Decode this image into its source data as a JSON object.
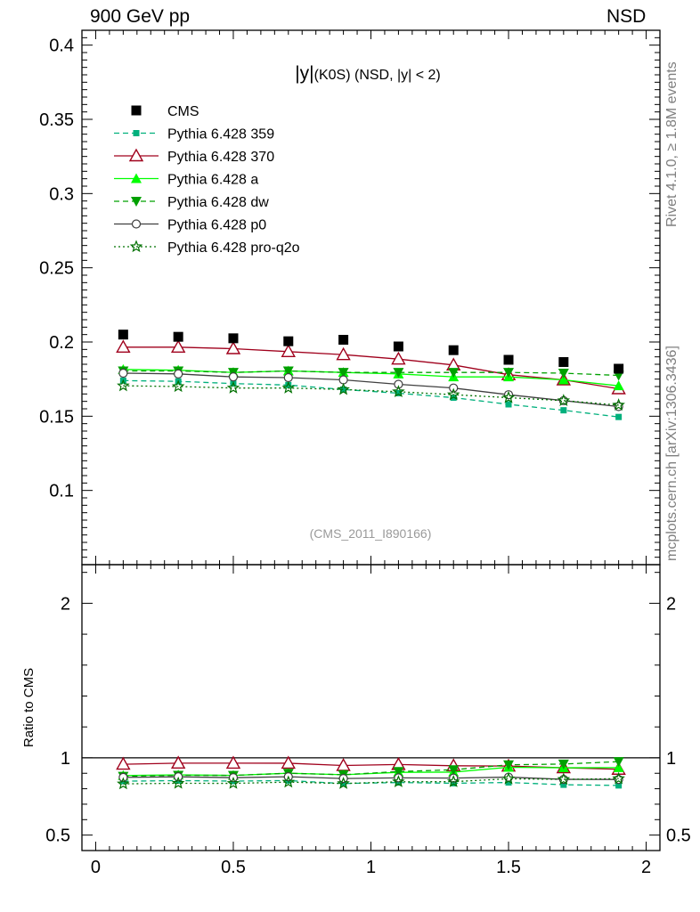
{
  "header": {
    "left": "900 GeV pp",
    "right": "NSD"
  },
  "side_labels": {
    "rivet": "Rivet 4.1.0, ≥ 1.8M events",
    "mcplots": "mcplots.cern.ch [arXiv:1306.3436]"
  },
  "colors": {
    "cms": "#000000",
    "p359": "#00b07c",
    "p370": "#a0001c",
    "pa": "#00ff00",
    "pdw": "#00a000",
    "pp0": "#404040",
    "pq2o": "#007000"
  },
  "chart_data": {
    "type": "line",
    "title_main": "|y|",
    "title_rest": "(K0S) (NSD, |y| < 2)",
    "watermark": "(CMS_2011_I890166)",
    "xlabel": "",
    "ylabel": "",
    "ratio_ylabel": "Ratio to CMS",
    "xlim": [
      -0.05,
      2.05
    ],
    "ylim": [
      0.05,
      0.41
    ],
    "ratio_ylim": [
      0.4,
      2.25
    ],
    "x_ticks": [
      "0",
      "0.5",
      "1",
      "1.5",
      "2"
    ],
    "x_tick_values": [
      0,
      0.5,
      1,
      1.5,
      2
    ],
    "y_ticks": [
      "0.1",
      "0.15",
      "0.2",
      "0.25",
      "0.3",
      "0.35",
      "0.4"
    ],
    "y_tick_values": [
      0.1,
      0.15,
      0.2,
      0.25,
      0.3,
      0.35,
      0.4
    ],
    "ratio_ticks": [
      "0.5",
      "1",
      "2"
    ],
    "ratio_tick_values": [
      0.5,
      1,
      2
    ],
    "x": [
      0.1,
      0.3,
      0.5,
      0.7,
      0.9,
      1.1,
      1.3,
      1.5,
      1.7,
      1.9
    ],
    "data": {
      "name": "CMS",
      "values": [
        0.205,
        0.2035,
        0.2025,
        0.2005,
        0.2015,
        0.197,
        0.1945,
        0.188,
        0.1865,
        0.182
      ]
    },
    "series": [
      {
        "name": "Pythia 6.428 359",
        "color_key": "p359",
        "marker": "square",
        "dash": "6,4",
        "values": [
          0.174,
          0.1735,
          0.172,
          0.171,
          0.168,
          0.1655,
          0.1625,
          0.158,
          0.154,
          0.1495
        ]
      },
      {
        "name": "Pythia 6.428 370",
        "color_key": "p370",
        "marker": "triangle-open",
        "dash": "",
        "values": [
          0.1965,
          0.1965,
          0.1955,
          0.1935,
          0.1915,
          0.1885,
          0.1845,
          0.178,
          0.1745,
          0.1685
        ]
      },
      {
        "name": "Pythia 6.428 a",
        "color_key": "pa",
        "marker": "triangle",
        "dash": "",
        "values": [
          0.1815,
          0.181,
          0.1795,
          0.1805,
          0.1795,
          0.1785,
          0.1765,
          0.1765,
          0.1745,
          0.1705
        ]
      },
      {
        "name": "Pythia 6.428 dw",
        "color_key": "pdw",
        "marker": "triangle-down",
        "dash": "6,4",
        "values": [
          0.1805,
          0.1805,
          0.1795,
          0.1805,
          0.1795,
          0.1795,
          0.1795,
          0.1795,
          0.179,
          0.1775
        ]
      },
      {
        "name": "Pythia 6.428 p0",
        "color_key": "pp0",
        "marker": "circle-open",
        "dash": "",
        "values": [
          0.179,
          0.1785,
          0.1765,
          0.176,
          0.1745,
          0.1715,
          0.169,
          0.1645,
          0.1605,
          0.1565
        ]
      },
      {
        "name": "Pythia 6.428 pro-q2o",
        "color_key": "pq2o",
        "marker": "star",
        "dash": "2,3",
        "values": [
          0.1705,
          0.17,
          0.169,
          0.169,
          0.168,
          0.1665,
          0.1645,
          0.1625,
          0.1605,
          0.1575
        ]
      }
    ]
  }
}
